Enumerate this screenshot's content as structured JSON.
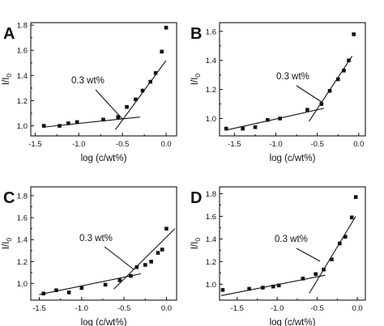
{
  "chart_data": [
    {
      "type": "scatter",
      "panel": "A",
      "xlabel": "log (c/wt%)",
      "ylabel": "I/I0",
      "ylabel_main": "I/I",
      "ylabel_sub": "0",
      "xlim": [
        -1.55,
        0.12
      ],
      "ylim": [
        0.92,
        1.82
      ],
      "xticks": [
        -1.5,
        -1.0,
        -0.5,
        0.0
      ],
      "xtick_labels": [
        "-1.5",
        "-1.0",
        "-0.5",
        "0.0"
      ],
      "yticks": [
        1.0,
        1.2,
        1.4,
        1.6,
        1.8
      ],
      "ytick_labels": [
        "1.0",
        "1.2",
        "1.4",
        "1.6",
        "1.8"
      ],
      "annotation": "0.3 wt%",
      "x": [
        -1.4,
        -1.22,
        -1.12,
        -1.02,
        -0.72,
        -0.55,
        -0.45,
        -0.35,
        -0.27,
        -0.18,
        -0.12,
        -0.05,
        0.0
      ],
      "y": [
        1.0,
        1.0,
        1.02,
        1.03,
        1.05,
        1.07,
        1.15,
        1.21,
        1.28,
        1.35,
        1.42,
        1.59,
        1.78
      ],
      "fit_lines": [
        {
          "x": [
            -1.4,
            -0.3
          ],
          "y": [
            0.99,
            1.07
          ]
        },
        {
          "x": [
            -0.58,
            0.0
          ],
          "y": [
            0.97,
            1.52
          ]
        }
      ]
    },
    {
      "type": "scatter",
      "panel": "B",
      "xlabel": "log (c/wt%)",
      "ylabel": "I/I0",
      "ylabel_main": "I/I",
      "ylabel_sub": "0",
      "xlim": [
        -1.68,
        0.08
      ],
      "ylim": [
        0.88,
        1.66
      ],
      "xticks": [
        -1.5,
        -1.0,
        -0.5,
        0.0
      ],
      "xtick_labels": [
        "-1.5",
        "-1.0",
        "-0.5",
        "0.0"
      ],
      "yticks": [
        1.0,
        1.2,
        1.4,
        1.6
      ],
      "ytick_labels": [
        "1.0",
        "1.2",
        "1.4",
        "1.6"
      ],
      "annotation": "0.3 wt%",
      "x": [
        -1.6,
        -1.4,
        -1.25,
        -1.1,
        -0.95,
        -0.62,
        -0.45,
        -0.35,
        -0.25,
        -0.18,
        -0.12,
        -0.06
      ],
      "y": [
        0.93,
        0.93,
        0.94,
        0.99,
        1.0,
        1.06,
        1.1,
        1.19,
        1.27,
        1.33,
        1.4,
        1.58
      ],
      "fit_lines": [
        {
          "x": [
            -1.6,
            -0.42
          ],
          "y": [
            0.92,
            1.07
          ]
        },
        {
          "x": [
            -0.6,
            -0.08
          ],
          "y": [
            0.98,
            1.43
          ]
        }
      ]
    },
    {
      "type": "scatter",
      "panel": "C",
      "xlabel": "log (c/wt%)",
      "ylabel": "I/I0",
      "ylabel_main": "I/I",
      "ylabel_sub": "0",
      "xlim": [
        -1.6,
        0.12
      ],
      "ylim": [
        0.85,
        1.88
      ],
      "xticks": [
        -1.5,
        -1.0,
        -0.5,
        0.0
      ],
      "xtick_labels": [
        "-1.5",
        "-1.0",
        "-0.5",
        "0.0"
      ],
      "yticks": [
        1.0,
        1.2,
        1.4,
        1.6,
        1.8
      ],
      "ytick_labels": [
        "1.0",
        "1.2",
        "1.4",
        "1.6",
        "1.8"
      ],
      "annotation": "0.3 wt%",
      "x": [
        -1.45,
        -1.3,
        -1.15,
        -1.0,
        -0.72,
        -0.55,
        -0.42,
        -0.35,
        -0.25,
        -0.18,
        -0.1,
        -0.05,
        0.0
      ],
      "y": [
        0.91,
        0.94,
        0.92,
        0.96,
        0.99,
        1.03,
        1.07,
        1.15,
        1.17,
        1.2,
        1.28,
        1.31,
        1.5
      ],
      "fit_lines": [
        {
          "x": [
            -1.5,
            -0.3
          ],
          "y": [
            0.9,
            1.09
          ]
        },
        {
          "x": [
            -0.62,
            0.1
          ],
          "y": [
            0.95,
            1.5
          ]
        }
      ]
    },
    {
      "type": "scatter",
      "panel": "D",
      "xlabel": "log (c/wt%)",
      "ylabel": "I/I0",
      "ylabel_main": "I/I",
      "ylabel_sub": "0",
      "xlim": [
        -1.72,
        0.1
      ],
      "ylim": [
        0.86,
        1.86
      ],
      "xticks": [
        -1.5,
        -1.0,
        -0.5,
        0.0
      ],
      "xtick_labels": [
        "-1.5",
        "-1.0",
        "-0.5",
        "0.0"
      ],
      "yticks": [
        1.0,
        1.2,
        1.4,
        1.6,
        1.8
      ],
      "ytick_labels": [
        "1.0",
        "1.2",
        "1.4",
        "1.6",
        "1.8"
      ],
      "annotation": "0.3 wt%",
      "x": [
        -1.68,
        -1.35,
        -1.18,
        -1.05,
        -0.98,
        -0.68,
        -0.52,
        -0.42,
        -0.32,
        -0.22,
        -0.15,
        -0.07,
        -0.02
      ],
      "y": [
        0.95,
        0.96,
        0.97,
        0.98,
        0.99,
        1.05,
        1.09,
        1.13,
        1.22,
        1.36,
        1.42,
        1.59,
        1.77
      ],
      "fit_lines": [
        {
          "x": [
            -1.7,
            -0.4
          ],
          "y": [
            0.9,
            1.08
          ]
        },
        {
          "x": [
            -0.6,
            -0.02
          ],
          "y": [
            0.92,
            1.6
          ]
        }
      ]
    }
  ]
}
